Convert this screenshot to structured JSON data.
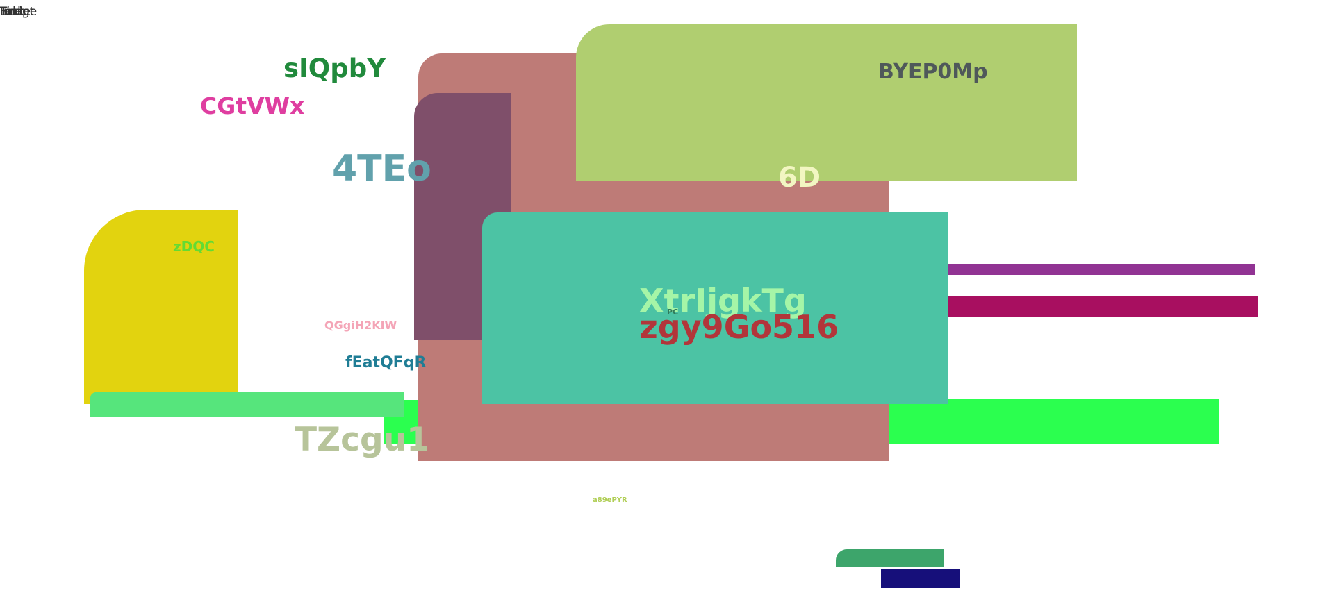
{
  "colors": {
    "rose": "#be7b77",
    "lime_big": "#b0ce70",
    "plum": "#7f4f6a",
    "teal": "#4cc3a4",
    "yellow": "#e2d30f",
    "green_light": "#56e57c",
    "green_bright": "#2bff4f",
    "purple": "#913393",
    "magenta": "#a80f60",
    "forest": "#3da56b",
    "navy": "#160f7a"
  },
  "top_left_text": [
    "Text",
    "Script",
    "Image",
    "Link",
    "Table"
  ],
  "labels": {
    "sIQpbY": "sIQpbY",
    "CGtVWx": "CGtVWx",
    "4TEo": "4TEo",
    "zDQC": "zDQC",
    "QGgiH2KIW": "QGgiH2KIW",
    "fEatQFqR": "fEatQFqR",
    "TZcgu1": "TZcgu1",
    "BYEP0Mp": "BYEP0Mp",
    "6D": "6D",
    "XtrIjgkTg": "XtrIjgkTg",
    "zgy9Go516": "zgy9Go516",
    "PC": "PC",
    "a89ePYR": "a89ePYR"
  }
}
